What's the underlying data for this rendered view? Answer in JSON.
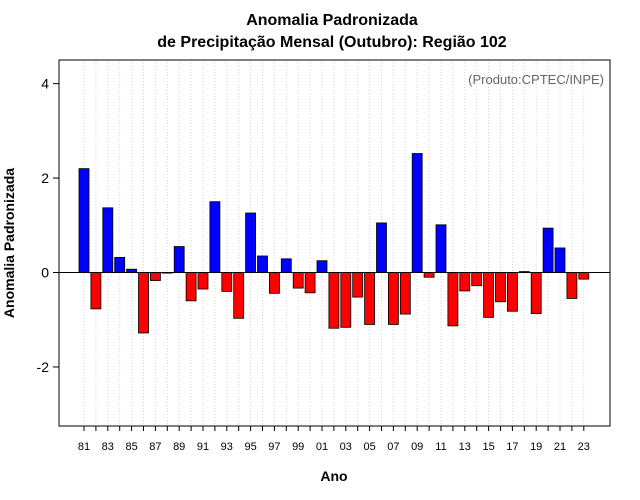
{
  "chart_data": {
    "type": "bar",
    "title": "Anomalia Padronizada",
    "subtitle": "de Precipitação Mensal (Outubro): Região 102",
    "xlabel": "Ano",
    "ylabel": "Anomalia Padronizada",
    "credit": "(Produto:CPTEC/INPE)",
    "ylim": [
      -3.25,
      4.5
    ],
    "yticks": [
      4,
      2,
      0,
      -2
    ],
    "ytick_labels": [
      "4",
      "2",
      "0",
      "-2"
    ],
    "x_tick_labels": [
      "81",
      "83",
      "85",
      "87",
      "89",
      "91",
      "93",
      "95",
      "97",
      "99",
      "01",
      "03",
      "05",
      "07",
      "09",
      "11",
      "13",
      "15",
      "17",
      "19",
      "21",
      "23"
    ],
    "categories": [
      "81",
      "82",
      "83",
      "84",
      "85",
      "86",
      "87",
      "88",
      "89",
      "90",
      "91",
      "92",
      "93",
      "94",
      "95",
      "96",
      "97",
      "98",
      "99",
      "00",
      "01",
      "02",
      "03",
      "04",
      "05",
      "06",
      "07",
      "08",
      "09",
      "10",
      "11",
      "12",
      "13",
      "14",
      "15",
      "16",
      "17",
      "18",
      "19",
      "20",
      "21",
      "22",
      "23"
    ],
    "values": [
      2.2,
      -0.77,
      1.37,
      0.32,
      0.07,
      -1.28,
      -0.17,
      -0.01,
      0.55,
      -0.6,
      -0.35,
      1.5,
      -0.4,
      -0.97,
      1.26,
      0.35,
      -0.44,
      0.29,
      -0.33,
      -0.43,
      0.25,
      -1.18,
      -1.16,
      -0.52,
      -1.1,
      1.05,
      -1.1,
      -0.88,
      2.52,
      -0.1,
      1.01,
      -1.13,
      -0.39,
      -0.28,
      -0.95,
      -0.62,
      -0.82,
      0.02,
      -0.87,
      0.94,
      0.52,
      -0.55,
      -0.14
    ],
    "colors": {
      "positive": "#0000ff",
      "negative": "#ff0000",
      "grid": "#d3d3d3",
      "zero_line": "#000000"
    },
    "grid": true
  }
}
